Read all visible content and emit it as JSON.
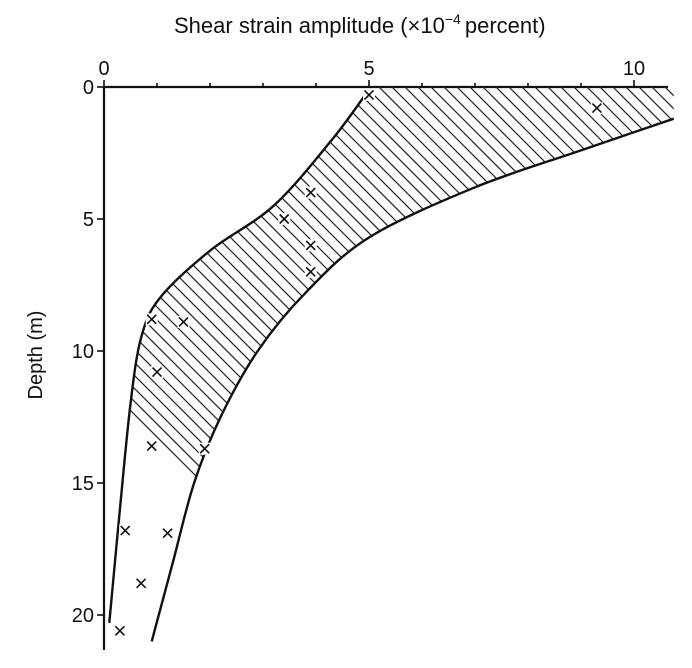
{
  "chart_data": {
    "type": "scatter",
    "title": "Shear strain amplitude (×10⁻⁴ percent)",
    "title_parts": {
      "main": "Shear strain amplitude (×10",
      "superscript": "−4",
      "tail": "percent)"
    },
    "xlabel": "Shear strain amplitude (×10⁻⁴ percent)",
    "ylabel": "Depth (m)",
    "xaxis_position": "top",
    "y_inverted": true,
    "xlim": [
      0,
      10.6
    ],
    "ylim": [
      0,
      21.3
    ],
    "x_ticks": [
      0,
      5,
      10
    ],
    "x_tick_labels": [
      "0",
      "5",
      "10"
    ],
    "x_minor_ticks": [
      1,
      2,
      3,
      4,
      6,
      7,
      8,
      9
    ],
    "y_ticks": [
      0,
      5,
      10,
      15,
      20
    ],
    "y_tick_labels": [
      "0",
      "5",
      "10",
      "15",
      "20"
    ],
    "grid": false,
    "shaded_band": {
      "fill": "diagonal hatching",
      "left_boundary": [
        {
          "x": 5.0,
          "y": 0.1
        },
        {
          "x": 4.3,
          "y": 2.0
        },
        {
          "x": 3.2,
          "y": 4.5
        },
        {
          "x": 2.0,
          "y": 6.2
        },
        {
          "x": 1.05,
          "y": 8.0
        },
        {
          "x": 0.7,
          "y": 9.5
        },
        {
          "x": 0.5,
          "y": 12.0
        },
        {
          "x": 0.3,
          "y": 16.0
        },
        {
          "x": 0.1,
          "y": 20.3
        }
      ],
      "right_boundary": [
        {
          "x": 10.75,
          "y": 1.2
        },
        {
          "x": 9.0,
          "y": 2.4
        },
        {
          "x": 7.0,
          "y": 3.8
        },
        {
          "x": 5.0,
          "y": 5.7
        },
        {
          "x": 3.8,
          "y": 7.8
        },
        {
          "x": 2.9,
          "y": 10.0
        },
        {
          "x": 2.2,
          "y": 12.5
        },
        {
          "x": 1.7,
          "y": 15.0
        },
        {
          "x": 1.3,
          "y": 18.0
        },
        {
          "x": 0.9,
          "y": 21.0
        }
      ]
    },
    "series": [
      {
        "points": [
          {
            "x": 5.0,
            "y": 0.3
          },
          {
            "x": 9.3,
            "y": 0.8
          },
          {
            "x": 3.9,
            "y": 4.0
          },
          {
            "x": 3.4,
            "y": 5.0
          },
          {
            "x": 3.9,
            "y": 6.0
          },
          {
            "x": 3.9,
            "y": 7.0
          },
          {
            "x": 0.9,
            "y": 8.8
          },
          {
            "x": 1.5,
            "y": 8.9
          },
          {
            "x": 1.0,
            "y": 10.8
          },
          {
            "x": 0.9,
            "y": 13.6
          },
          {
            "x": 1.9,
            "y": 13.7
          },
          {
            "x": 0.4,
            "y": 16.8
          },
          {
            "x": 1.2,
            "y": 16.9
          },
          {
            "x": 0.7,
            "y": 18.8
          },
          {
            "x": 0.3,
            "y": 20.6
          }
        ]
      }
    ]
  }
}
